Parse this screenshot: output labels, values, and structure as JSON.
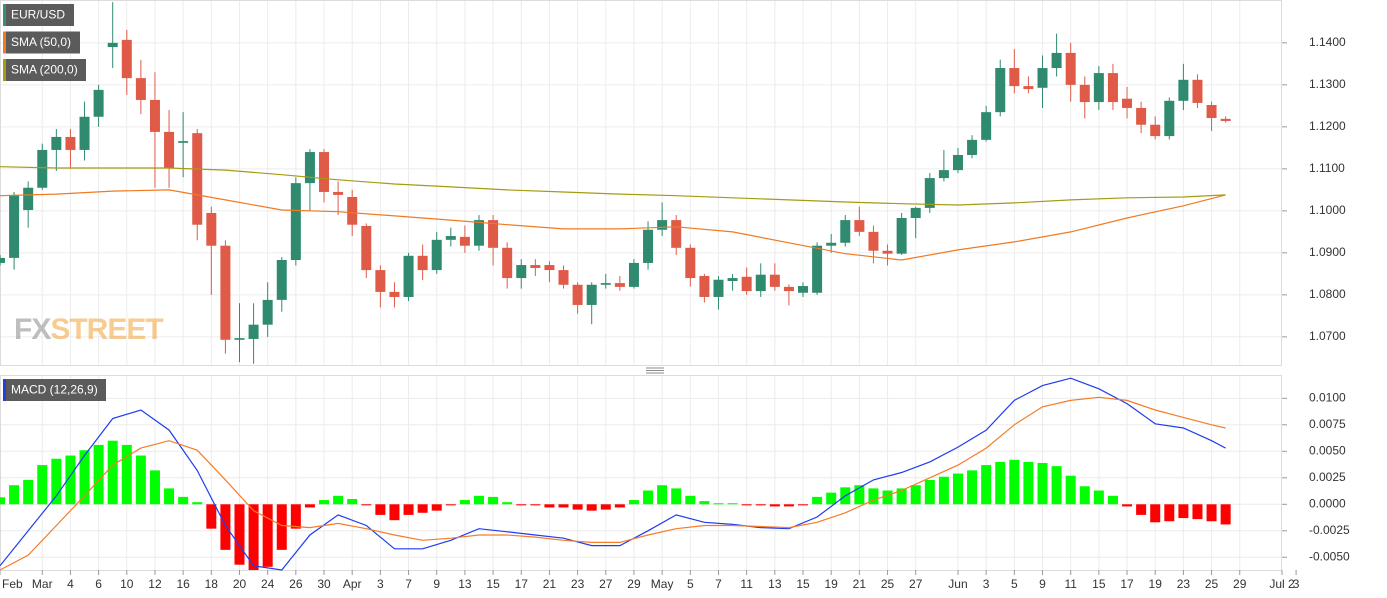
{
  "chart_data": [
    {
      "type": "candlestick",
      "name": "EUR/USD",
      "legend_color": "#3a8f78",
      "up_color": "#2f8a70",
      "down_color": "#e05a48",
      "watermark": [
        "FX",
        "STREET"
      ],
      "xlim": [
        0,
        91
      ],
      "ylim": [
        1.0633,
        1.1502
      ],
      "yticks": [
        {
          "value": 1.07,
          "label": "1.0700"
        },
        {
          "value": 1.08,
          "label": "1.0800"
        },
        {
          "value": 1.09,
          "label": "1.0900"
        },
        {
          "value": 1.1,
          "label": "1.1000"
        },
        {
          "value": 1.11,
          "label": "1.1100"
        },
        {
          "value": 1.12,
          "label": "1.1200"
        },
        {
          "value": 1.13,
          "label": "1.1300"
        },
        {
          "value": 1.14,
          "label": "1.1400"
        }
      ],
      "grid": true,
      "x": [
        0,
        1,
        2,
        3,
        4,
        5,
        6,
        7,
        8,
        9,
        10,
        11,
        12,
        13,
        14,
        15,
        16,
        17,
        18,
        19,
        20,
        21,
        22,
        23,
        24,
        25,
        26,
        27,
        28,
        29,
        30,
        31,
        32,
        33,
        34,
        35,
        36,
        37,
        38,
        39,
        40,
        41,
        42,
        43,
        44,
        45,
        46,
        47,
        48,
        49,
        50,
        51,
        52,
        53,
        54,
        55,
        56,
        57,
        58,
        59,
        60,
        61,
        62,
        63,
        64,
        65,
        66,
        67,
        68,
        69,
        70,
        71,
        72,
        73,
        74,
        75,
        76,
        77,
        78,
        79,
        80,
        81,
        82,
        83,
        84,
        85,
        86,
        87
      ],
      "open": [
        1.0876,
        1.0888,
        1.1002,
        1.1055,
        1.1145,
        1.1176,
        1.1145,
        1.1224,
        1.139,
        1.1407,
        1.1316,
        1.1264,
        1.1188,
        1.1162,
        1.1185,
        1.0995,
        1.0917,
        1.0693,
        1.0695,
        1.0729,
        1.0788,
        1.0883,
        1.1066,
        1.114,
        1.1045,
        1.1033,
        1.0964,
        1.0859,
        1.0807,
        1.0795,
        1.0893,
        1.0859,
        1.0931,
        1.0938,
        1.0917,
        1.0978,
        1.0912,
        1.084,
        1.0871,
        1.0871,
        1.0859,
        1.0824,
        1.0776,
        1.0824,
        1.0828,
        1.0819,
        1.0876,
        1.0955,
        1.0978,
        1.0912,
        1.0845,
        1.0795,
        1.0833,
        1.0843,
        1.0809,
        1.0848,
        1.0819,
        1.0805,
        1.0805,
        1.0917,
        1.0924,
        1.0978,
        1.095,
        1.0905,
        1.0898,
        1.0983,
        1.1007,
        1.1078,
        1.1097,
        1.1133,
        1.1169,
        1.1235,
        1.134,
        1.1297,
        1.1293,
        1.134,
        1.1376,
        1.13,
        1.1259,
        1.1328,
        1.1267,
        1.1245,
        1.1205,
        1.1178,
        1.1262,
        1.1312,
        1.1252,
        1.1219
      ],
      "high": [
        1.0895,
        1.1045,
        1.107,
        1.116,
        1.1195,
        1.1195,
        1.126,
        1.13,
        1.1497,
        1.1431,
        1.1359,
        1.133,
        1.124,
        1.1235,
        1.1195,
        1.101,
        1.093,
        1.078,
        1.078,
        1.083,
        1.089,
        1.108,
        1.1147,
        1.1147,
        1.107,
        1.105,
        1.097,
        1.087,
        1.083,
        1.09,
        1.092,
        1.095,
        1.096,
        1.0965,
        1.099,
        1.099,
        1.0925,
        1.0885,
        1.0885,
        1.088,
        1.087,
        1.083,
        1.083,
        1.085,
        1.0845,
        1.0885,
        1.0975,
        1.102,
        1.099,
        1.092,
        1.085,
        1.0845,
        1.085,
        1.0865,
        1.0875,
        1.0875,
        1.0825,
        1.083,
        1.0925,
        1.0945,
        1.099,
        1.101,
        1.0965,
        1.092,
        1.0995,
        1.101,
        1.109,
        1.1145,
        1.115,
        1.118,
        1.125,
        1.136,
        1.1385,
        1.132,
        1.137,
        1.1422,
        1.14,
        1.132,
        1.1345,
        1.135,
        1.1295,
        1.126,
        1.1225,
        1.127,
        1.135,
        1.1325,
        1.126,
        1.1225
      ],
      "low": [
        1.087,
        1.086,
        1.096,
        1.105,
        1.1095,
        1.11,
        1.112,
        1.12,
        1.134,
        1.1276,
        1.123,
        1.1055,
        1.1055,
        1.108,
        1.093,
        1.08,
        1.066,
        1.064,
        1.0636,
        1.07,
        1.076,
        1.087,
        1.1,
        1.102,
        1.099,
        1.094,
        1.084,
        1.077,
        1.077,
        1.0785,
        1.0835,
        1.085,
        1.0915,
        1.09,
        1.0905,
        1.087,
        1.0815,
        1.0815,
        1.0845,
        1.083,
        1.0815,
        1.0755,
        1.073,
        1.0815,
        1.081,
        1.0815,
        1.086,
        1.094,
        1.0895,
        1.082,
        1.0782,
        1.0765,
        1.081,
        1.08,
        1.0795,
        1.081,
        1.0775,
        1.0795,
        1.08,
        1.09,
        1.0915,
        1.094,
        1.0875,
        1.087,
        1.0895,
        1.0935,
        1.0995,
        1.107,
        1.109,
        1.1125,
        1.1165,
        1.1225,
        1.128,
        1.128,
        1.1245,
        1.132,
        1.126,
        1.122,
        1.124,
        1.124,
        1.122,
        1.1185,
        1.117,
        1.117,
        1.124,
        1.1245,
        1.119,
        1.121
      ],
      "close": [
        1.0888,
        1.1038,
        1.1055,
        1.1145,
        1.1176,
        1.1145,
        1.1224,
        1.1288,
        1.14,
        1.1316,
        1.1264,
        1.1188,
        1.1102,
        1.1166,
        1.0967,
        1.0917,
        1.0693,
        1.0697,
        1.0729,
        1.0788,
        1.0883,
        1.1066,
        1.114,
        1.1045,
        1.1038,
        1.0967,
        1.0859,
        1.0807,
        1.0795,
        1.0893,
        1.0859,
        1.0931,
        1.094,
        1.0917,
        1.0978,
        1.0912,
        1.084,
        1.0871,
        1.0864,
        1.0859,
        1.0824,
        1.0776,
        1.0824,
        1.0828,
        1.0819,
        1.0876,
        1.0955,
        1.0978,
        1.0912,
        1.084,
        1.0795,
        1.0836,
        1.084,
        1.0809,
        1.0848,
        1.0819,
        1.0809,
        1.0821,
        1.0917,
        1.0924,
        1.0978,
        1.095,
        1.0905,
        1.0898,
        1.0983,
        1.1007,
        1.1078,
        1.1097,
        1.1133,
        1.1169,
        1.1235,
        1.134,
        1.1297,
        1.129,
        1.134,
        1.1376,
        1.13,
        1.1259,
        1.1328,
        1.1259,
        1.1245,
        1.1205,
        1.1178,
        1.1262,
        1.1312,
        1.1257,
        1.1221,
        1.1214
      ],
      "overlays": [
        {
          "name": "SMA (50,0)",
          "color": "#f07a22",
          "x": [
            0,
            4,
            8,
            12,
            16,
            20,
            24,
            28,
            32,
            36,
            40,
            44,
            48,
            52,
            56,
            60,
            64,
            68,
            72,
            76,
            80,
            84,
            87
          ],
          "values": [
            1.1036,
            1.104,
            1.1047,
            1.105,
            1.1026,
            1.1002,
            1.0998,
            1.0988,
            1.0978,
            1.0967,
            1.0957,
            1.0957,
            1.0962,
            1.095,
            1.0924,
            1.0898,
            1.0883,
            1.0907,
            1.0926,
            1.095,
            1.0983,
            1.1012,
            1.1038
          ]
        },
        {
          "name": "SMA (200,0)",
          "color": "#a59c12",
          "x": [
            0,
            4,
            8,
            12,
            16,
            20,
            24,
            28,
            32,
            36,
            40,
            44,
            48,
            52,
            56,
            60,
            64,
            68,
            72,
            76,
            80,
            84,
            87
          ],
          "values": [
            1.1105,
            1.1102,
            1.1102,
            1.1102,
            1.1097,
            1.1086,
            1.1074,
            1.1064,
            1.1057,
            1.105,
            1.1045,
            1.104,
            1.1036,
            1.1031,
            1.1026,
            1.1021,
            1.1017,
            1.1014,
            1.1019,
            1.1026,
            1.1031,
            1.1033,
            1.1038
          ]
        }
      ]
    },
    {
      "type": "macd",
      "name": "MACD (12,26,9)",
      "legend_color": "#2341d6",
      "xlim": [
        0,
        91
      ],
      "ylim": [
        -0.0062,
        0.0122
      ],
      "yticks": [
        {
          "value": -0.005,
          "label": "-0.0050"
        },
        {
          "value": -0.0025,
          "label": "-0.0025"
        },
        {
          "value": 0,
          "label": "0.0000"
        },
        {
          "value": 0.0025,
          "label": "0.0025"
        },
        {
          "value": 0.005,
          "label": "0.0050"
        },
        {
          "value": 0.0075,
          "label": "0.0075"
        },
        {
          "value": 0.01,
          "label": "0.0100"
        }
      ],
      "xticks": [
        {
          "value": 0,
          "label": "Feb"
        },
        {
          "value": 3,
          "label": "Mar"
        },
        {
          "value": 5,
          "label": "4"
        },
        {
          "value": 7,
          "label": "6"
        },
        {
          "value": 9,
          "label": "10"
        },
        {
          "value": 11,
          "label": "12"
        },
        {
          "value": 13,
          "label": "16"
        },
        {
          "value": 15,
          "label": "18"
        },
        {
          "value": 17,
          "label": "20"
        },
        {
          "value": 19,
          "label": "24"
        },
        {
          "value": 21,
          "label": "26"
        },
        {
          "value": 23,
          "label": "30"
        },
        {
          "value": 25,
          "label": "Apr"
        },
        {
          "value": 27,
          "label": "3"
        },
        {
          "value": 29,
          "label": "7"
        },
        {
          "value": 31,
          "label": "9"
        },
        {
          "value": 33,
          "label": "13"
        },
        {
          "value": 35,
          "label": "15"
        },
        {
          "value": 37,
          "label": "17"
        },
        {
          "value": 39,
          "label": "21"
        },
        {
          "value": 41,
          "label": "23"
        },
        {
          "value": 43,
          "label": "27"
        },
        {
          "value": 45,
          "label": "29"
        },
        {
          "value": 47,
          "label": "May"
        },
        {
          "value": 49,
          "label": "5"
        },
        {
          "value": 51,
          "label": "7"
        },
        {
          "value": 53,
          "label": "11"
        },
        {
          "value": 55,
          "label": "13"
        },
        {
          "value": 57,
          "label": "15"
        },
        {
          "value": 59,
          "label": "19"
        },
        {
          "value": 61,
          "label": "21"
        },
        {
          "value": 63,
          "label": "25"
        },
        {
          "value": 65,
          "label": "27"
        },
        {
          "value": 68,
          "label": "Jun"
        },
        {
          "value": 70,
          "label": "3"
        },
        {
          "value": 72,
          "label": "5"
        },
        {
          "value": 74,
          "label": "9"
        },
        {
          "value": 76,
          "label": "11"
        },
        {
          "value": 78,
          "label": "15"
        },
        {
          "value": 80,
          "label": "17"
        },
        {
          "value": 82,
          "label": "19"
        },
        {
          "value": 84,
          "label": "23"
        },
        {
          "value": 86,
          "label": "25"
        },
        {
          "value": 88,
          "label": "29"
        },
        {
          "value": 91,
          "label": "Jul 2"
        },
        {
          "value": 92,
          "label": "3"
        }
      ],
      "grid": true,
      "x": [
        0,
        1,
        2,
        3,
        4,
        5,
        6,
        7,
        8,
        9,
        10,
        11,
        12,
        13,
        14,
        15,
        16,
        17,
        18,
        19,
        20,
        21,
        22,
        23,
        24,
        25,
        26,
        27,
        28,
        29,
        30,
        31,
        32,
        33,
        34,
        35,
        36,
        37,
        38,
        39,
        40,
        41,
        42,
        43,
        44,
        45,
        46,
        47,
        48,
        49,
        50,
        51,
        52,
        53,
        54,
        55,
        56,
        57,
        58,
        59,
        60,
        61,
        62,
        63,
        64,
        65,
        66,
        67,
        68,
        69,
        70,
        71,
        72,
        73,
        74,
        75,
        76,
        77,
        78,
        79,
        80,
        81,
        82,
        83,
        84,
        85,
        86,
        87
      ],
      "histogram": {
        "up_color": "#00ff00",
        "down_color": "#ff0000",
        "values": [
          0.00066,
          0.0018,
          0.0023,
          0.0037,
          0.0043,
          0.0046,
          0.0051,
          0.0056,
          0.006,
          0.0056,
          0.0046,
          0.0032,
          0.0015,
          0.0007,
          0.0002,
          -0.0023,
          -0.0043,
          -0.0057,
          -0.0062,
          -0.0059,
          -0.0043,
          -0.0023,
          -0.0003,
          0.0004,
          0.0008,
          0.0005,
          -0.0001,
          -0.001,
          -0.0015,
          -0.001,
          -0.0008,
          -0.0006,
          -0.0001,
          0.0004,
          0.0008,
          0.0007,
          0.0002,
          -0.0001,
          -0.0001,
          -0.0003,
          -0.0003,
          -0.0005,
          -0.0006,
          -0.0005,
          -0.0003,
          0.0004,
          0.0013,
          0.0018,
          0.0015,
          0.0008,
          0.0003,
          0.0001,
          0.0001,
          -0.0001,
          -0.0001,
          -0.0002,
          -0.0002,
          -0.0001,
          0.0007,
          0.0011,
          0.0016,
          0.0018,
          0.0015,
          0.0013,
          0.0015,
          0.0018,
          0.0023,
          0.0026,
          0.0029,
          0.0032,
          0.0037,
          0.004,
          0.0042,
          0.004,
          0.0039,
          0.0036,
          0.0027,
          0.0017,
          0.0013,
          0.0008,
          -0.0002,
          -0.001,
          -0.0017,
          -0.0016,
          -0.0013,
          -0.0014,
          -0.0016,
          -0.0019
        ]
      },
      "series": [
        {
          "color": "#1e3cf0",
          "x": [
            0,
            2,
            4,
            6,
            8,
            10,
            12,
            14,
            16,
            18,
            20,
            22,
            24,
            26,
            28,
            30,
            32,
            34,
            36,
            38,
            40,
            42,
            44,
            46,
            48,
            50,
            52,
            54,
            56,
            58,
            60,
            62,
            64,
            66,
            68,
            70,
            72,
            74,
            76,
            78,
            80,
            82,
            84,
            86,
            87
          ],
          "values": [
            -0.0058,
            -0.0025,
            0.0008,
            0.0046,
            0.0081,
            0.0089,
            0.007,
            0.0032,
            -0.002,
            -0.0058,
            -0.0062,
            -0.0029,
            -0.001,
            -0.002,
            -0.0042,
            -0.0042,
            -0.0034,
            -0.0023,
            -0.0026,
            -0.0029,
            -0.0032,
            -0.0039,
            -0.0039,
            -0.0025,
            -0.001,
            -0.0017,
            -0.0019,
            -0.0022,
            -0.0023,
            -0.0012,
            0.0008,
            0.0023,
            0.003,
            0.004,
            0.0054,
            0.007,
            0.0098,
            0.0112,
            0.0119,
            0.0109,
            0.0095,
            0.0076,
            0.0072,
            0.006,
            0.0053
          ]
        },
        {
          "color": "#f57c28",
          "x": [
            0,
            2,
            4,
            6,
            8,
            10,
            12,
            14,
            16,
            18,
            20,
            22,
            24,
            26,
            28,
            30,
            32,
            34,
            36,
            38,
            40,
            42,
            44,
            46,
            48,
            50,
            52,
            54,
            56,
            58,
            60,
            62,
            64,
            66,
            68,
            70,
            72,
            74,
            76,
            78,
            80,
            82,
            84,
            86,
            87
          ],
          "values": [
            -0.0062,
            -0.0048,
            -0.002,
            0.0008,
            0.0037,
            0.0053,
            0.006,
            0.0051,
            0.0023,
            -0.0006,
            -0.002,
            -0.0022,
            -0.0018,
            -0.0023,
            -0.0029,
            -0.0034,
            -0.0032,
            -0.0029,
            -0.0029,
            -0.0031,
            -0.0034,
            -0.0036,
            -0.0036,
            -0.0029,
            -0.0023,
            -0.002,
            -0.002,
            -0.0021,
            -0.0022,
            -0.0017,
            -0.0008,
            0.0004,
            0.0013,
            0.0025,
            0.0037,
            0.0053,
            0.0075,
            0.0092,
            0.0098,
            0.0101,
            0.0098,
            0.0089,
            0.0082,
            0.0075,
            0.0072
          ]
        }
      ]
    }
  ]
}
